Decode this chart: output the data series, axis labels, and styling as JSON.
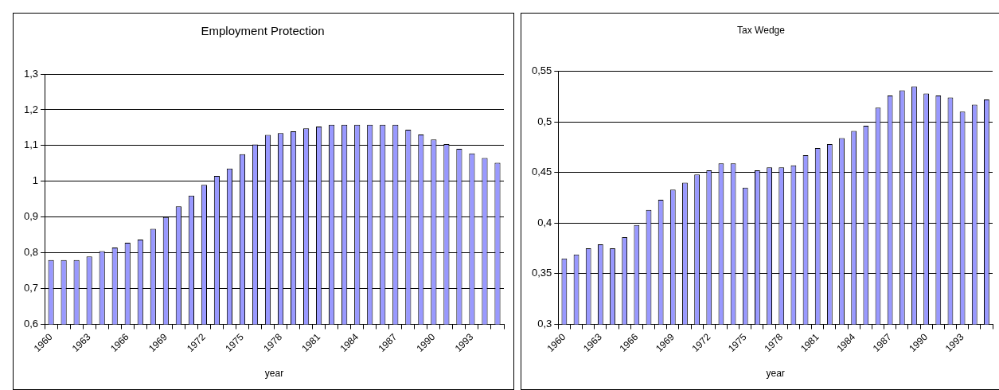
{
  "chart_data": [
    {
      "type": "bar",
      "title": "Employment Protection",
      "xlabel": "year",
      "categories": [
        "1960",
        null,
        null,
        "1963",
        null,
        null,
        "1966",
        null,
        null,
        "1969",
        null,
        null,
        "1972",
        null,
        null,
        "1975",
        null,
        null,
        "1978",
        null,
        null,
        "1981",
        null,
        null,
        "1984",
        null,
        null,
        "1987",
        null,
        null,
        "1990",
        null,
        null,
        "1993",
        null,
        null
      ],
      "values": [
        0.78,
        0.78,
        0.78,
        0.79,
        0.805,
        0.815,
        0.828,
        0.837,
        0.867,
        0.9,
        0.93,
        0.96,
        0.99,
        1.015,
        1.036,
        1.076,
        1.103,
        1.13,
        1.135,
        1.14,
        1.148,
        1.153,
        1.158,
        1.158,
        1.158,
        1.158,
        1.158,
        1.158,
        1.144,
        1.131,
        1.117,
        1.104,
        1.091,
        1.078,
        1.065,
        1.052
      ],
      "color": "#9999ff",
      "ylim": [
        0.6,
        1.3
      ],
      "yticks": [
        {
          "value": 0.6,
          "label": "0,6"
        },
        {
          "value": 0.7,
          "label": "0,7"
        },
        {
          "value": 0.8,
          "label": "0,8"
        },
        {
          "value": 0.9,
          "label": "0,9"
        },
        1,
        {
          "value": 1.1,
          "label": "1,1"
        },
        {
          "value": 1.2,
          "label": "1,2"
        },
        {
          "value": 1.3,
          "label": "1,3"
        }
      ],
      "grid": "y"
    },
    {
      "type": "bar",
      "title": "Tax Wedge",
      "xlabel": "year",
      "categories": [
        "1960",
        null,
        null,
        "1963",
        null,
        null,
        "1966",
        null,
        null,
        "1969",
        null,
        null,
        "1972",
        null,
        null,
        "1975",
        null,
        null,
        "1978",
        null,
        null,
        "1981",
        null,
        null,
        "1984",
        null,
        null,
        "1987",
        null,
        null,
        "1990",
        null,
        null,
        "1993",
        null,
        null
      ],
      "values": [
        0.365,
        0.369,
        0.375,
        0.379,
        0.375,
        0.386,
        0.398,
        0.413,
        0.423,
        0.433,
        0.44,
        0.448,
        0.452,
        0.459,
        0.459,
        0.435,
        0.452,
        0.455,
        0.455,
        0.457,
        0.467,
        0.474,
        0.478,
        0.484,
        0.491,
        0.496,
        0.514,
        0.526,
        0.531,
        0.535,
        0.528,
        0.526,
        0.524,
        0.51,
        0.517,
        0.522
      ],
      "color": "#9999ff",
      "ylim": [
        0.3,
        0.55
      ],
      "yticks": [
        {
          "value": 0.3,
          "label": "0,3"
        },
        {
          "value": 0.35,
          "label": "0,35"
        },
        {
          "value": 0.4,
          "label": "0,4"
        },
        {
          "value": 0.45,
          "label": "0,45"
        },
        {
          "value": 0.5,
          "label": "0,5"
        },
        {
          "value": 0.55,
          "label": "0,55"
        }
      ],
      "grid": "y"
    }
  ]
}
